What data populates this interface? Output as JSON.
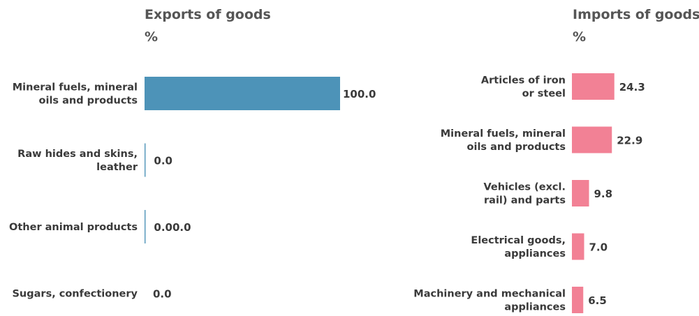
{
  "chart_data": [
    {
      "type": "bar",
      "orientation": "horizontal",
      "title": "Exports of goods",
      "unit": "%",
      "color": "#4d93b8",
      "categories": [
        [
          "Mineral fuels, mineral",
          "oils and products"
        ],
        [
          "Raw hides and skins,",
          "leather"
        ],
        [
          "Other animal products"
        ],
        [
          "Sugars, confectionery"
        ]
      ],
      "values": [
        100.0,
        0.01,
        0.001,
        0.0
      ],
      "value_labels": [
        "100.0",
        "0.0",
        "0.00.0",
        "0.0"
      ],
      "xlim": [
        0,
        100
      ],
      "grid": false,
      "legend": "none"
    },
    {
      "type": "bar",
      "orientation": "horizontal",
      "title": "Imports of goods",
      "unit": "%",
      "color": "#f28195",
      "categories": [
        [
          "Articles of iron",
          "or steel"
        ],
        [
          "Mineral fuels, mineral",
          "oils and products"
        ],
        [
          "Vehicles (excl.",
          "rail) and parts"
        ],
        [
          "Electrical goods,",
          "appliances"
        ],
        [
          "Machinery and mechanical",
          "appliances"
        ]
      ],
      "values": [
        24.3,
        22.9,
        9.8,
        7.0,
        6.5
      ],
      "value_labels": [
        "24.3",
        "22.9",
        "9.8",
        "7.0",
        "6.5"
      ],
      "xlim": [
        0,
        100
      ],
      "grid": false,
      "legend": "none"
    }
  ]
}
